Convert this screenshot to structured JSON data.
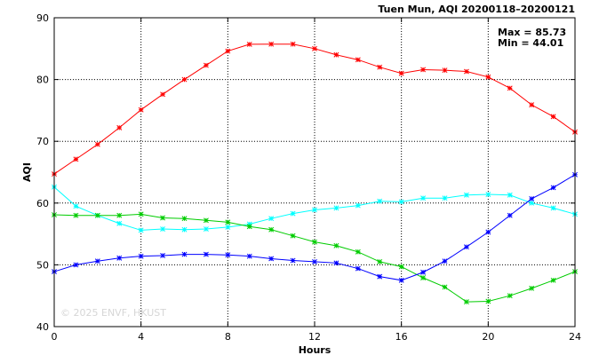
{
  "chart_data": {
    "type": "line",
    "title": "Tuen Mun, AQI 20200118–20200121",
    "xlabel": "Hours",
    "ylabel": "AQI",
    "xlim": [
      0,
      24
    ],
    "ylim": [
      40,
      90
    ],
    "xticks": [
      0,
      4,
      8,
      12,
      16,
      20,
      24
    ],
    "yticks": [
      40,
      50,
      60,
      70,
      80,
      90
    ],
    "grid": true,
    "annotations": {
      "max": "Max = 85.73",
      "min": "Min = 44.01"
    },
    "watermark": "© 2025 ENVF, HKUST",
    "x": [
      0,
      1,
      2,
      3,
      4,
      5,
      6,
      7,
      8,
      9,
      10,
      11,
      12,
      13,
      14,
      15,
      16,
      17,
      18,
      19,
      20,
      21,
      22,
      23,
      24
    ],
    "series": [
      {
        "color": "#ff0000",
        "values": [
          64.7,
          67.1,
          69.5,
          72.2,
          75.1,
          77.6,
          80.0,
          82.3,
          84.6,
          85.7,
          85.73,
          85.73,
          85.0,
          84.0,
          83.2,
          82.0,
          81.0,
          81.6,
          81.5,
          81.3,
          80.4,
          78.6,
          75.9,
          74.0,
          71.5
        ]
      },
      {
        "color": "#00ffff",
        "values": [
          62.6,
          59.5,
          58.0,
          56.7,
          55.6,
          55.8,
          55.7,
          55.8,
          56.1,
          56.6,
          57.5,
          58.3,
          58.9,
          59.2,
          59.6,
          60.3,
          60.2,
          60.8,
          60.8,
          61.3,
          61.4,
          61.3,
          60.0,
          59.2,
          58.2
        ]
      },
      {
        "color": "#00cc00",
        "values": [
          58.1,
          58.0,
          58.0,
          58.0,
          58.2,
          57.6,
          57.5,
          57.2,
          56.9,
          56.2,
          55.7,
          54.7,
          53.7,
          53.1,
          52.1,
          50.5,
          49.7,
          47.9,
          46.4,
          44.01,
          44.1,
          45.0,
          46.2,
          47.5,
          48.9
        ]
      },
      {
        "color": "#0000ff",
        "values": [
          48.9,
          50.0,
          50.6,
          51.1,
          51.4,
          51.5,
          51.7,
          51.7,
          51.6,
          51.4,
          51.0,
          50.7,
          50.5,
          50.3,
          49.4,
          48.1,
          47.5,
          48.8,
          50.6,
          52.9,
          55.3,
          58.0,
          60.7,
          62.5,
          64.6
        ]
      }
    ]
  }
}
